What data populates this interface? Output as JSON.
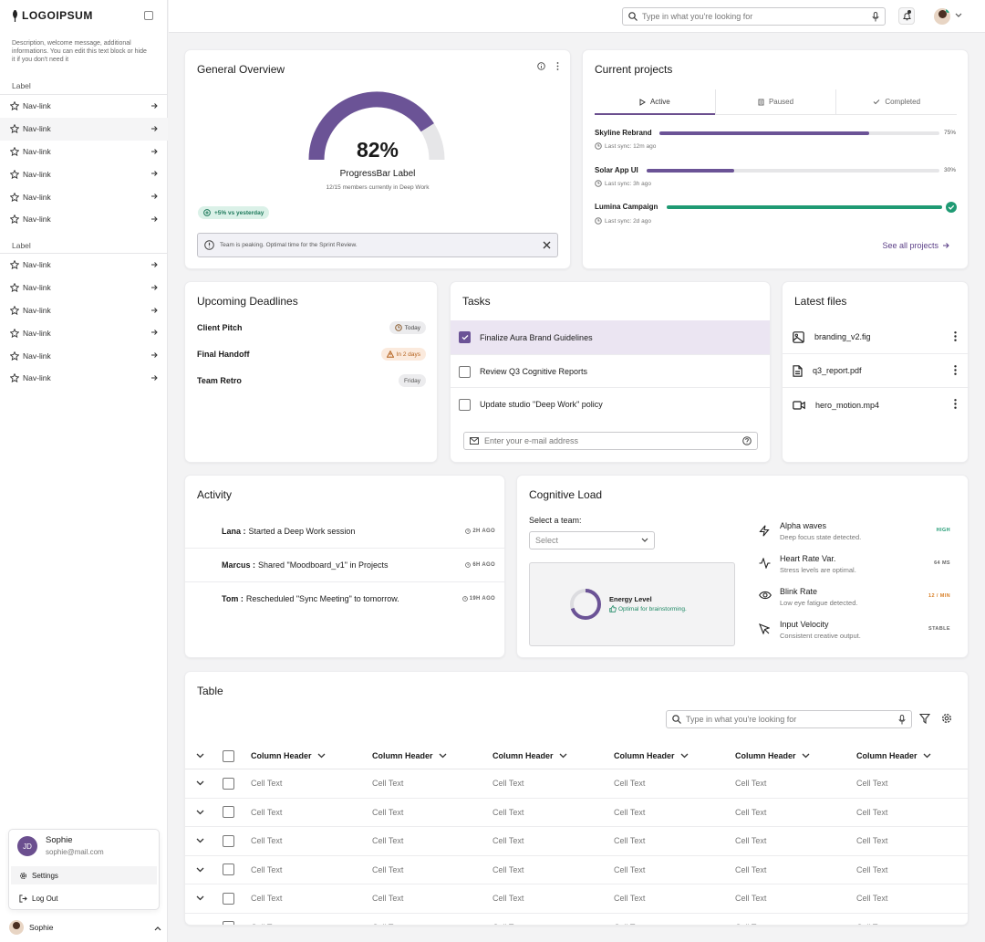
{
  "sidebar": {
    "logo": "LOGOIPSUM",
    "description": "Description, welcome message, additional informations. You can edit this text block or hide it if you don't need it",
    "groups": [
      {
        "label": "Label",
        "items": [
          "Nav-link",
          "Nav-link",
          "Nav-link",
          "Nav-link",
          "Nav-link",
          "Nav-link"
        ]
      },
      {
        "label": "Label",
        "items": [
          "Nav-link",
          "Nav-link",
          "Nav-link",
          "Nav-link",
          "Nav-link",
          "Nav-link"
        ]
      }
    ],
    "user_menu": {
      "initials": "JD",
      "name": "Sophie",
      "email": "sophie@mail.com",
      "settings": "Settings",
      "logout": "Log Out"
    },
    "bottom_user": "Sophie"
  },
  "topbar": {
    "search_placeholder": "Type in what you're looking for"
  },
  "overview": {
    "title": "General Overview",
    "value": "82%",
    "progress": 0.82,
    "label": "ProgressBar Label",
    "sub": "12/15 members currently in Deep Work",
    "badge": "+5% vs yesterday",
    "alert": "Team is peaking. Optimal time for the Sprint Review."
  },
  "projects": {
    "title": "Current projects",
    "tabs": [
      "Active",
      "Paused",
      "Completed"
    ],
    "items": [
      {
        "name": "Skyline Rebrand",
        "sync": "Last sync: 12m ago",
        "progress": 0.75,
        "pct": "75%"
      },
      {
        "name": "Solar App UI",
        "sync": "Last sync: 3h ago",
        "progress": 0.3,
        "pct": "30%"
      },
      {
        "name": "Lumina Campaign",
        "sync": "Last sync: 2d ago",
        "progress": 1.0,
        "pct": ""
      }
    ],
    "see_all": "See all projects"
  },
  "deadlines": {
    "title": "Upcoming Deadlines",
    "items": [
      {
        "name": "Client Pitch",
        "badge": "Today"
      },
      {
        "name": "Final Handoff",
        "badge": "In 2 days"
      },
      {
        "name": "Team Retro",
        "badge": "Friday"
      }
    ]
  },
  "tasks": {
    "title": "Tasks",
    "items": [
      {
        "label": "Finalize Aura Brand Guidelines",
        "checked": true
      },
      {
        "label": "Review Q3 Cognitive Reports",
        "checked": false
      },
      {
        "label": "Update studio \"Deep Work\" policy",
        "checked": false
      }
    ],
    "email_placeholder": "Enter your e-mail address"
  },
  "files": {
    "title": "Latest files",
    "items": [
      {
        "name": "branding_v2.fig",
        "icon": "image-icon"
      },
      {
        "name": "q3_report.pdf",
        "icon": "document-icon"
      },
      {
        "name": "hero_motion.mp4",
        "icon": "video-icon"
      }
    ]
  },
  "activity": {
    "title": "Activity",
    "items": [
      {
        "user": "Lana :",
        "text": "Started a Deep Work session",
        "time": "2H AGO"
      },
      {
        "user": "Marcus :",
        "text": "Shared \"Moodboard_v1\" in Projects",
        "time": "6H AGO"
      },
      {
        "user": "Tom :",
        "text": "Rescheduled \"Sync Meeting\" to tomorrow.",
        "time": "19H AGO"
      }
    ]
  },
  "cognitive": {
    "title": "Cognitive Load",
    "select_label": "Select a team:",
    "select_value": "Select",
    "energy_title": "Energy Level",
    "energy_sub": "Optimal for brainstorming.",
    "metrics": [
      {
        "title": "Alpha waves",
        "sub": "Deep focus state detected.",
        "value": "HIGH",
        "color": "#1f9a73",
        "icon": "lightning-icon"
      },
      {
        "title": "Heart Rate Var.",
        "sub": "Stress levels are optimal.",
        "value": "64 MS",
        "color": "#666666",
        "icon": "pulse-icon"
      },
      {
        "title": "Blink Rate",
        "sub": "Low eye fatigue detected.",
        "value": "12 / MIN",
        "color": "#d9822b",
        "icon": "eye-icon"
      },
      {
        "title": "Input Velocity",
        "sub": "Consistent creative output.",
        "value": "STABLE",
        "color": "#666666",
        "icon": "cursor-icon"
      }
    ]
  },
  "table": {
    "title": "Table",
    "search_placeholder": "Type in what you're looking for",
    "headers": [
      "Column Header",
      "Column Header",
      "Column Header",
      "Column Header",
      "Column Header",
      "Column Header"
    ],
    "rows": [
      [
        "Cell Text",
        "Cell Text",
        "Cell Text",
        "Cell Text",
        "Cell Text",
        "Cell Text"
      ],
      [
        "Cell Text",
        "Cell Text",
        "Cell Text",
        "Cell Text",
        "Cell Text",
        "Cell Text"
      ],
      [
        "Cell Text",
        "Cell Text",
        "Cell Text",
        "Cell Text",
        "Cell Text",
        "Cell Text"
      ],
      [
        "Cell Text",
        "Cell Text",
        "Cell Text",
        "Cell Text",
        "Cell Text",
        "Cell Text"
      ],
      [
        "Cell Text",
        "Cell Text",
        "Cell Text",
        "Cell Text",
        "Cell Text",
        "Cell Text"
      ],
      [
        "Cell Text",
        "Cell Text",
        "Cell Text",
        "Cell Text",
        "Cell Text",
        "Cell Text"
      ]
    ]
  }
}
